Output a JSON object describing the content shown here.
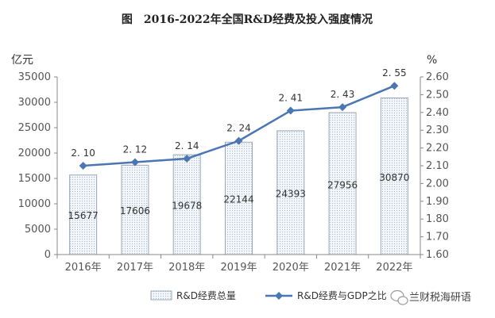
{
  "chart_data": {
    "type": "bar",
    "title": "图　2016-2022年全国R&D经费及投入强度情况",
    "categories": [
      "2016年",
      "2017年",
      "2018年",
      "2019年",
      "2020年",
      "2021年",
      "2022年"
    ],
    "series": [
      {
        "name": "R&D经费总量",
        "type": "bar",
        "axis": "left",
        "values": [
          15677,
          17606,
          19678,
          22144,
          24393,
          27956,
          30870
        ],
        "labels": [
          "15677",
          "17606",
          "19678",
          "22144",
          "24393",
          "27956",
          "30870"
        ]
      },
      {
        "name": "R&D经费与GDP之比",
        "type": "line",
        "axis": "right",
        "values": [
          2.1,
          2.12,
          2.14,
          2.24,
          2.41,
          2.43,
          2.55
        ],
        "labels": [
          "2. 10",
          "2. 12",
          "2. 14",
          "2. 24",
          "2. 41",
          "2. 43",
          "2. 55"
        ]
      }
    ],
    "y_left": {
      "unit": "亿元",
      "ylim": [
        0,
        35000
      ],
      "ticks": [
        "0",
        "5000",
        "10000",
        "15000",
        "20000",
        "25000",
        "30000",
        "35000"
      ]
    },
    "y_right": {
      "unit": "%",
      "ylim": [
        1.6,
        2.6
      ],
      "ticks": [
        "1.60",
        "1.70",
        "1.80",
        "1.90",
        "2.00",
        "2.10",
        "2.20",
        "2.30",
        "2.40",
        "2.50",
        "2.60"
      ]
    },
    "grid": false,
    "legend": "bottom",
    "colors": {
      "bar_fill": "#f1f5f9",
      "bar_dots": "#a9b7c6",
      "bar_edge": "#9aa9ba",
      "line": "#4a76b3"
    }
  },
  "watermark": {
    "text": "兰财税海研语"
  }
}
